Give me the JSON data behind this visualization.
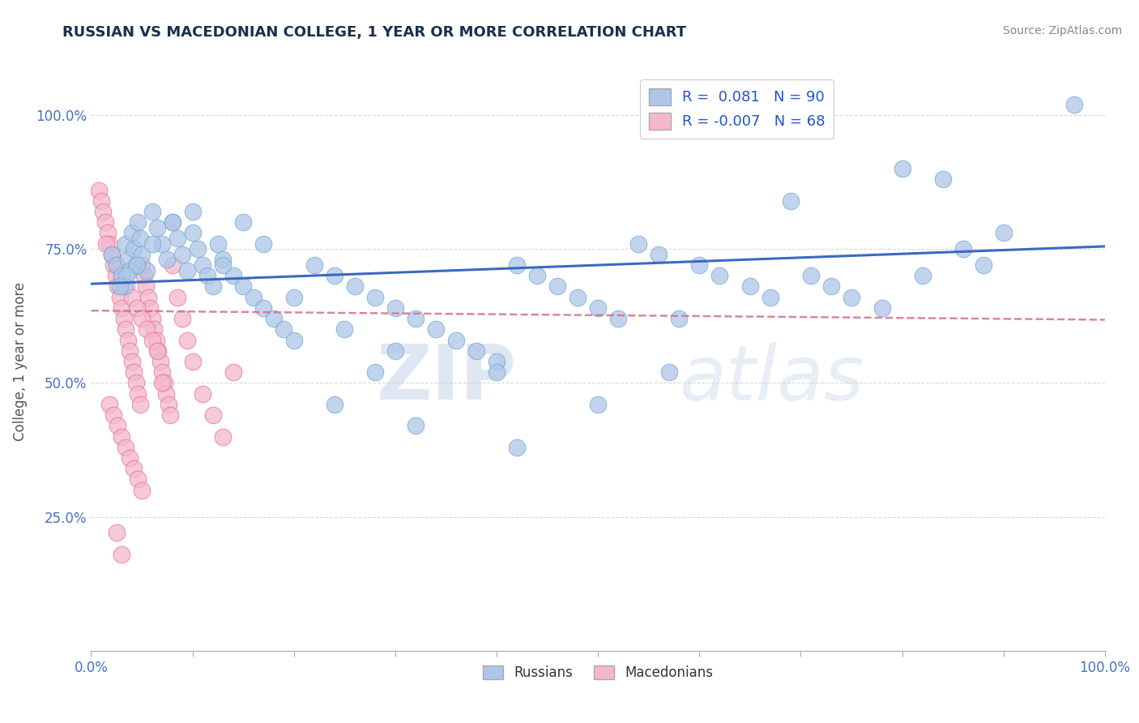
{
  "title": "RUSSIAN VS MACEDONIAN COLLEGE, 1 YEAR OR MORE CORRELATION CHART",
  "source": "Source: ZipAtlas.com",
  "ylabel": "College, 1 year or more",
  "watermark_zip": "ZIP",
  "watermark_atlas": "atlas",
  "russian_color": "#aec6e8",
  "russian_edge": "#7aadd4",
  "macedonian_color": "#f4b8cc",
  "macedonian_edge": "#e87898",
  "russian_line_color": "#3a6abf",
  "macedonian_line_color": "#d47090",
  "tick_color": "#4472c4",
  "grid_color": "#d8d8d8",
  "background_color": "#ffffff",
  "xmin": 0.0,
  "xmax": 1.0,
  "ymin": 0.0,
  "ymax": 1.08,
  "russian_line_x0": 0.0,
  "russian_line_y0": 0.685,
  "russian_line_x1": 1.0,
  "russian_line_y1": 0.755,
  "macedonian_line_x0": 0.0,
  "macedonian_line_y0": 0.635,
  "macedonian_line_x1": 1.0,
  "macedonian_line_y1": 0.618,
  "russian_scatter_x": [
    0.02,
    0.025,
    0.03,
    0.032,
    0.034,
    0.036,
    0.038,
    0.04,
    0.042,
    0.044,
    0.046,
    0.048,
    0.05,
    0.055,
    0.06,
    0.065,
    0.07,
    0.075,
    0.08,
    0.085,
    0.09,
    0.095,
    0.1,
    0.105,
    0.11,
    0.115,
    0.12,
    0.125,
    0.13,
    0.14,
    0.15,
    0.16,
    0.17,
    0.18,
    0.19,
    0.2,
    0.22,
    0.24,
    0.26,
    0.28,
    0.3,
    0.32,
    0.34,
    0.36,
    0.38,
    0.4,
    0.42,
    0.44,
    0.46,
    0.48,
    0.5,
    0.52,
    0.54,
    0.56,
    0.58,
    0.6,
    0.62,
    0.65,
    0.67,
    0.69,
    0.71,
    0.73,
    0.75,
    0.78,
    0.8,
    0.82,
    0.84,
    0.86,
    0.88,
    0.9,
    0.3,
    0.25,
    0.2,
    0.15,
    0.1,
    0.08,
    0.06,
    0.045,
    0.035,
    0.028,
    0.13,
    0.17,
    0.28,
    0.4,
    0.5,
    0.32,
    0.24,
    0.42,
    0.57,
    0.97
  ],
  "russian_scatter_y": [
    0.74,
    0.72,
    0.7,
    0.68,
    0.76,
    0.73,
    0.71,
    0.78,
    0.75,
    0.72,
    0.8,
    0.77,
    0.74,
    0.71,
    0.82,
    0.79,
    0.76,
    0.73,
    0.8,
    0.77,
    0.74,
    0.71,
    0.78,
    0.75,
    0.72,
    0.7,
    0.68,
    0.76,
    0.73,
    0.7,
    0.68,
    0.66,
    0.64,
    0.62,
    0.6,
    0.58,
    0.72,
    0.7,
    0.68,
    0.66,
    0.64,
    0.62,
    0.6,
    0.58,
    0.56,
    0.54,
    0.72,
    0.7,
    0.68,
    0.66,
    0.64,
    0.62,
    0.76,
    0.74,
    0.62,
    0.72,
    0.7,
    0.68,
    0.66,
    0.84,
    0.7,
    0.68,
    0.66,
    0.64,
    0.9,
    0.7,
    0.88,
    0.75,
    0.72,
    0.78,
    0.56,
    0.6,
    0.66,
    0.8,
    0.82,
    0.8,
    0.76,
    0.72,
    0.7,
    0.68,
    0.72,
    0.76,
    0.52,
    0.52,
    0.46,
    0.42,
    0.46,
    0.38,
    0.52,
    1.02
  ],
  "macedonian_scatter_x": [
    0.008,
    0.01,
    0.012,
    0.014,
    0.016,
    0.018,
    0.02,
    0.022,
    0.024,
    0.026,
    0.028,
    0.03,
    0.032,
    0.034,
    0.036,
    0.038,
    0.04,
    0.042,
    0.044,
    0.046,
    0.048,
    0.05,
    0.052,
    0.054,
    0.056,
    0.058,
    0.06,
    0.062,
    0.064,
    0.066,
    0.068,
    0.07,
    0.072,
    0.074,
    0.076,
    0.078,
    0.08,
    0.085,
    0.09,
    0.095,
    0.1,
    0.11,
    0.12,
    0.13,
    0.14,
    0.015,
    0.02,
    0.025,
    0.03,
    0.035,
    0.04,
    0.045,
    0.05,
    0.055,
    0.06,
    0.065,
    0.07,
    0.018,
    0.022,
    0.026,
    0.03,
    0.034,
    0.038,
    0.042,
    0.046,
    0.05,
    0.025,
    0.03
  ],
  "macedonian_scatter_y": [
    0.86,
    0.84,
    0.82,
    0.8,
    0.78,
    0.76,
    0.74,
    0.72,
    0.7,
    0.68,
    0.66,
    0.64,
    0.62,
    0.6,
    0.58,
    0.56,
    0.54,
    0.52,
    0.5,
    0.48,
    0.46,
    0.72,
    0.7,
    0.68,
    0.66,
    0.64,
    0.62,
    0.6,
    0.58,
    0.56,
    0.54,
    0.52,
    0.5,
    0.48,
    0.46,
    0.44,
    0.72,
    0.66,
    0.62,
    0.58,
    0.54,
    0.48,
    0.44,
    0.4,
    0.52,
    0.76,
    0.74,
    0.72,
    0.7,
    0.68,
    0.66,
    0.64,
    0.62,
    0.6,
    0.58,
    0.56,
    0.5,
    0.46,
    0.44,
    0.42,
    0.4,
    0.38,
    0.36,
    0.34,
    0.32,
    0.3,
    0.22,
    0.18
  ]
}
